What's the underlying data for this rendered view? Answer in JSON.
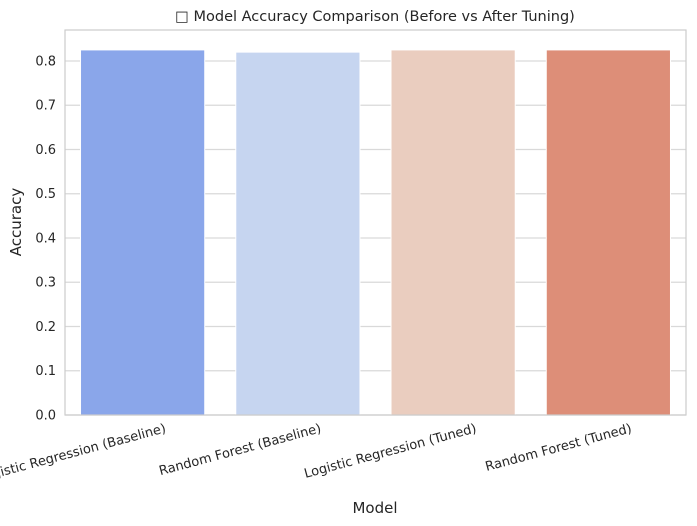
{
  "chart_data": {
    "type": "bar",
    "title": "□ Model Accuracy Comparison (Before vs After Tuning)",
    "xlabel": "Model",
    "ylabel": "Accuracy",
    "categories": [
      "Logistic Regression (Baseline)",
      "Random Forest (Baseline)",
      "Logistic Regression (Tuned)",
      "Random Forest (Tuned)"
    ],
    "values": [
      0.825,
      0.82,
      0.825,
      0.825
    ],
    "colors": [
      "#8aa6ea",
      "#c6d5f0",
      "#eacdbf",
      "#dd8e78"
    ],
    "yticks": [
      "0.0",
      "0.1",
      "0.2",
      "0.3",
      "0.4",
      "0.5",
      "0.6",
      "0.7",
      "0.8"
    ],
    "ylim": [
      0,
      0.87
    ],
    "grid": "horizontal",
    "legend": "none"
  }
}
